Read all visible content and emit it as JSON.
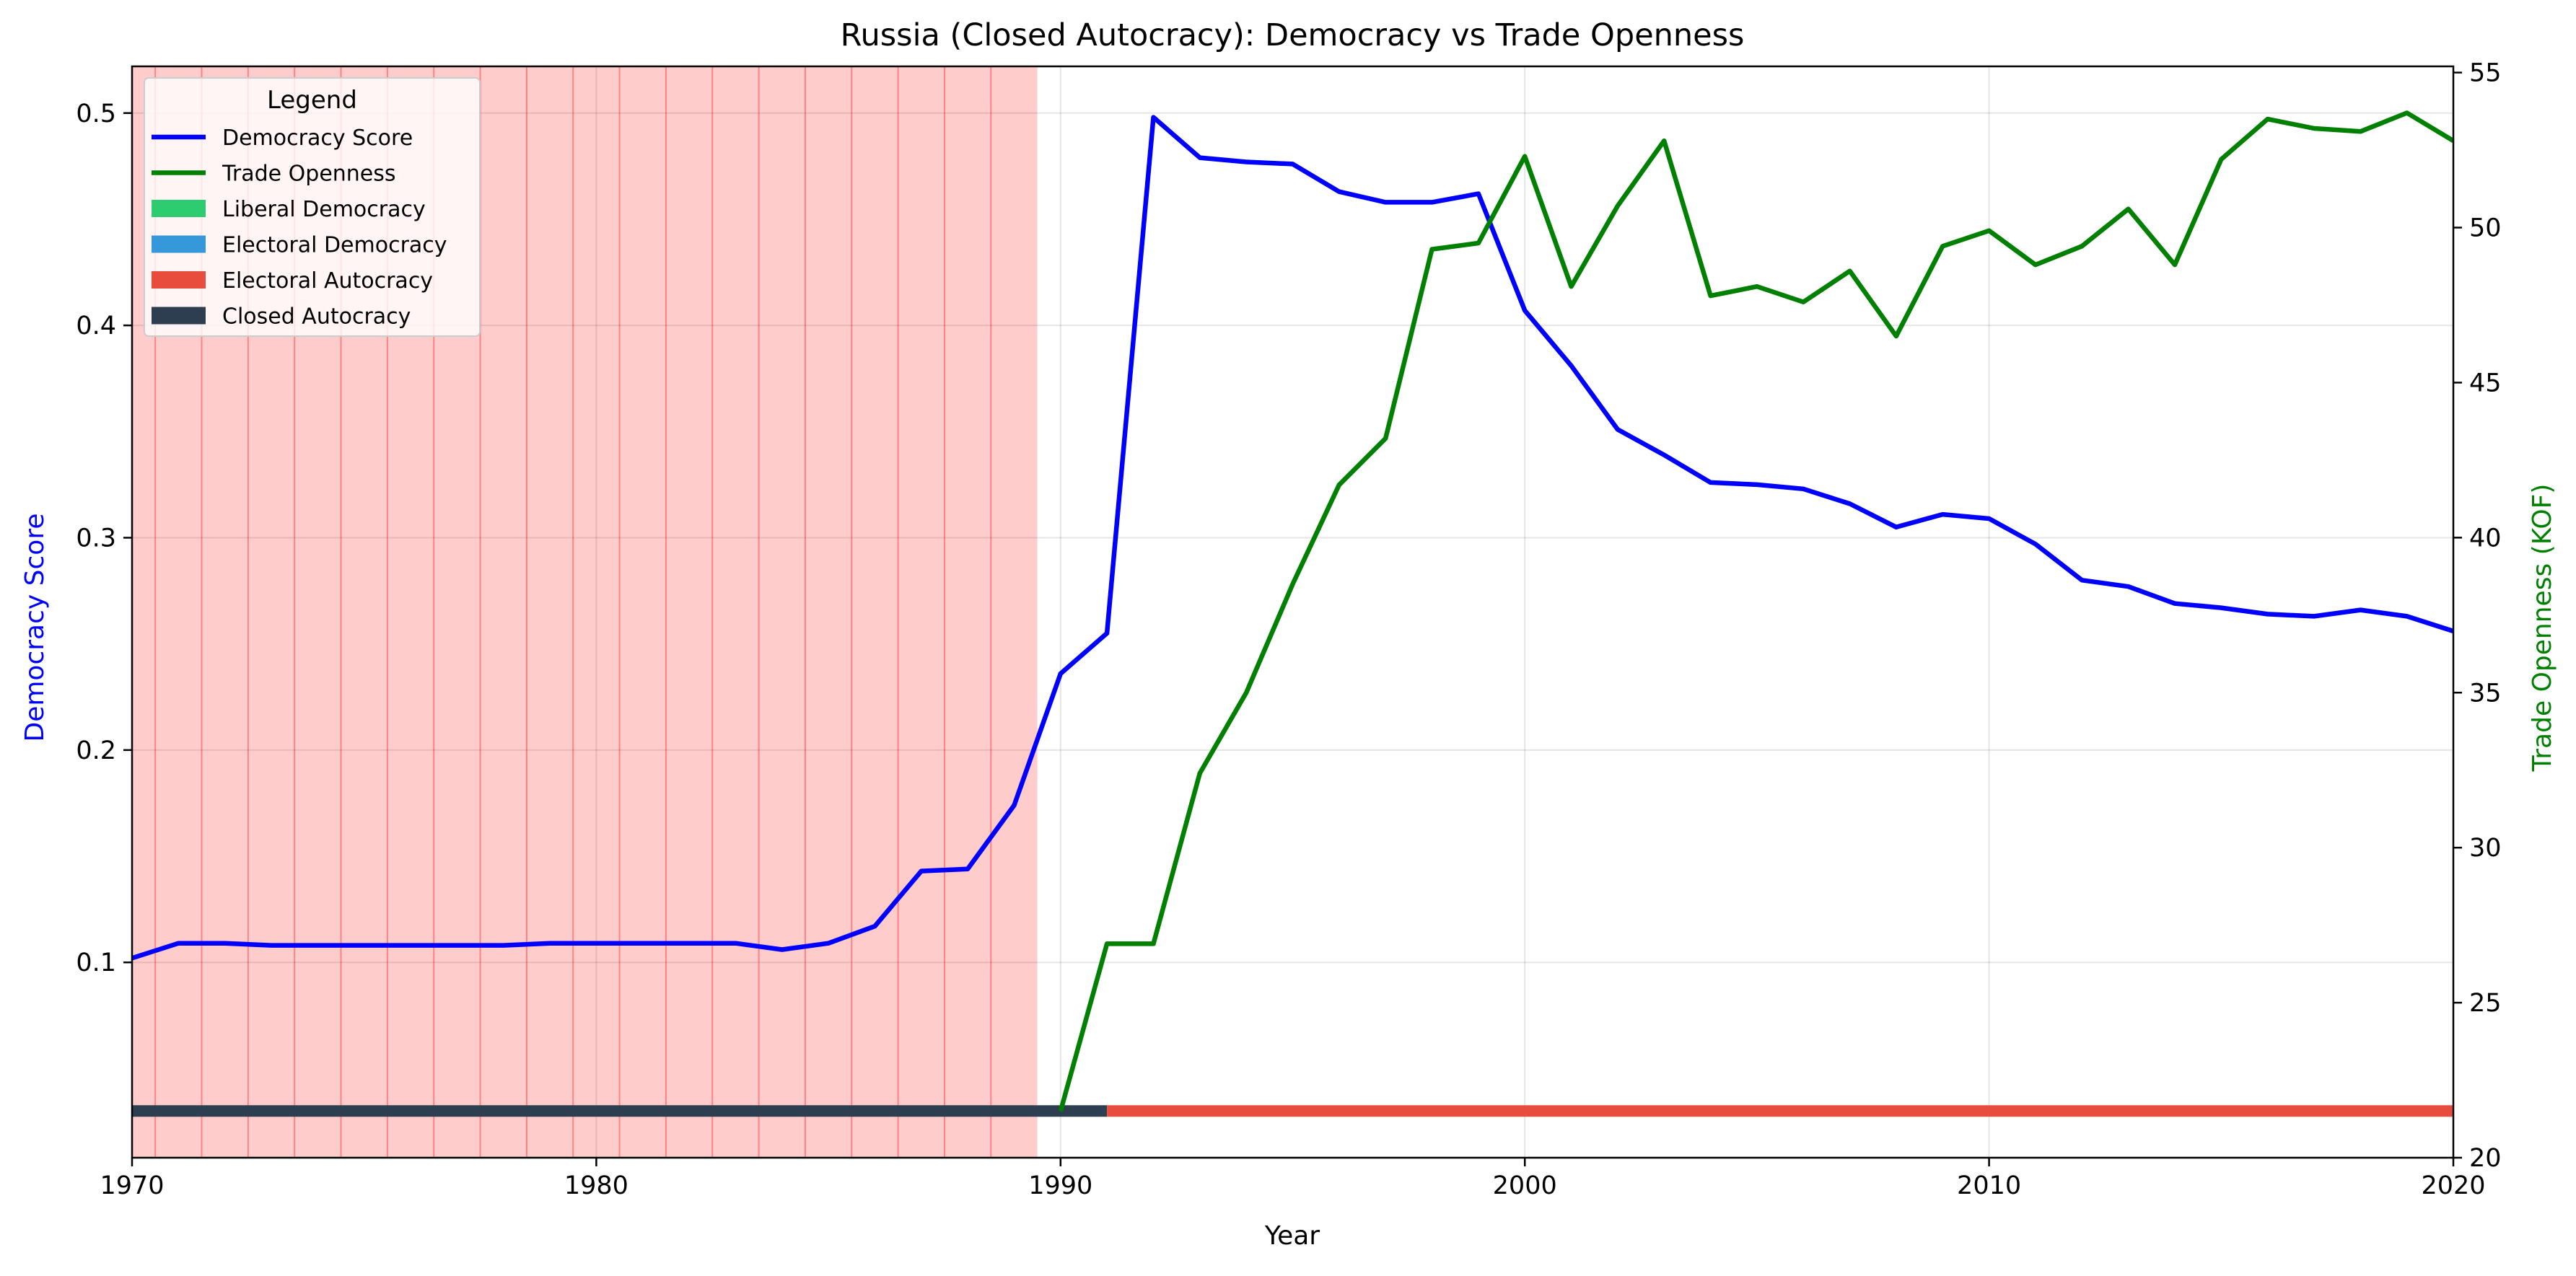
{
  "chart_data": {
    "type": "line",
    "title": "Russia (Closed Autocracy): Democracy vs Trade Openness",
    "xlabel": "Year",
    "ylabel_left": "Democracy Score",
    "ylabel_right": "Trade Openness (KOF)",
    "xlim": [
      1970,
      2020
    ],
    "ylim_left": [
      0.008,
      0.522
    ],
    "ylim_right": [
      20,
      55.2
    ],
    "x_ticks": [
      1970,
      1980,
      1990,
      2000,
      2010,
      2020
    ],
    "y_left_ticks": [
      0.1,
      0.2,
      0.3,
      0.4,
      0.5
    ],
    "y_right_ticks": [
      20,
      25,
      30,
      35,
      40,
      45,
      50,
      55
    ],
    "grid": true,
    "legend": {
      "title": "Legend",
      "placement": "upper-left",
      "entries": [
        {
          "label": "Democracy Score",
          "kind": "line",
          "color": "#0000ff"
        },
        {
          "label": "Trade Openness",
          "kind": "line",
          "color": "#008000"
        },
        {
          "label": "Liberal Democracy",
          "kind": "patch",
          "color": "#2ecc71"
        },
        {
          "label": "Electoral Democracy",
          "kind": "patch",
          "color": "#3498db"
        },
        {
          "label": "Electoral Autocracy",
          "kind": "patch",
          "color": "#e74c3c"
        },
        {
          "label": "Closed Autocracy",
          "kind": "patch",
          "color": "#2c3e50"
        }
      ]
    },
    "shaded_region": {
      "x_start": 1970,
      "x_end": 1989.5,
      "color": "#ffcccc",
      "line_color": "#ff6b6b"
    },
    "regime_bar": {
      "y": 0.03,
      "segments": [
        {
          "regime": "Closed Autocracy",
          "x_start": 1970,
          "x_end": 1991,
          "color": "#2c3e50"
        },
        {
          "regime": "Electoral Autocracy",
          "x_start": 1991,
          "x_end": 2020,
          "color": "#e74c3c"
        }
      ]
    },
    "series": [
      {
        "name": "Democracy Score",
        "axis": "left",
        "color": "#0000ff",
        "x": [
          1970,
          1971,
          1972,
          1973,
          1974,
          1975,
          1976,
          1977,
          1978,
          1979,
          1980,
          1981,
          1982,
          1983,
          1984,
          1985,
          1986,
          1987,
          1988,
          1989,
          1990,
          1991,
          1992,
          1993,
          1994,
          1995,
          1996,
          1997,
          1998,
          1999,
          2000,
          2001,
          2002,
          2003,
          2004,
          2005,
          2006,
          2007,
          2008,
          2009,
          2010,
          2011,
          2012,
          2013,
          2014,
          2015,
          2016,
          2017,
          2018,
          2019,
          2020
        ],
        "values": [
          0.102,
          0.109,
          0.109,
          0.108,
          0.108,
          0.108,
          0.108,
          0.108,
          0.108,
          0.109,
          0.109,
          0.109,
          0.109,
          0.109,
          0.106,
          0.109,
          0.117,
          0.143,
          0.144,
          0.174,
          0.236,
          0.255,
          0.498,
          0.479,
          0.477,
          0.476,
          0.463,
          0.458,
          0.458,
          0.462,
          0.407,
          0.381,
          0.351,
          0.339,
          0.326,
          0.325,
          0.323,
          0.316,
          0.305,
          0.311,
          0.309,
          0.297,
          0.28,
          0.277,
          0.269,
          0.267,
          0.264,
          0.263,
          0.266,
          0.263,
          0.256
        ]
      },
      {
        "name": "Trade Openness",
        "axis": "right",
        "color": "#008000",
        "x": [
          1990,
          1991,
          1992,
          1993,
          1994,
          1995,
          1996,
          1997,
          1998,
          1999,
          2000,
          2001,
          2002,
          2003,
          2004,
          2005,
          2006,
          2007,
          2008,
          2009,
          2010,
          2011,
          2012,
          2013,
          2014,
          2015,
          2016,
          2017,
          2018,
          2019,
          2020
        ],
        "values": [
          21.5,
          26.9,
          26.9,
          32.4,
          35.0,
          38.5,
          41.7,
          43.2,
          49.3,
          49.5,
          52.3,
          48.1,
          50.7,
          52.8,
          47.8,
          48.1,
          47.6,
          48.6,
          46.5,
          49.4,
          49.9,
          48.8,
          49.4,
          50.6,
          48.8,
          52.2,
          53.5,
          53.2,
          53.1,
          53.7,
          52.8
        ]
      }
    ]
  }
}
